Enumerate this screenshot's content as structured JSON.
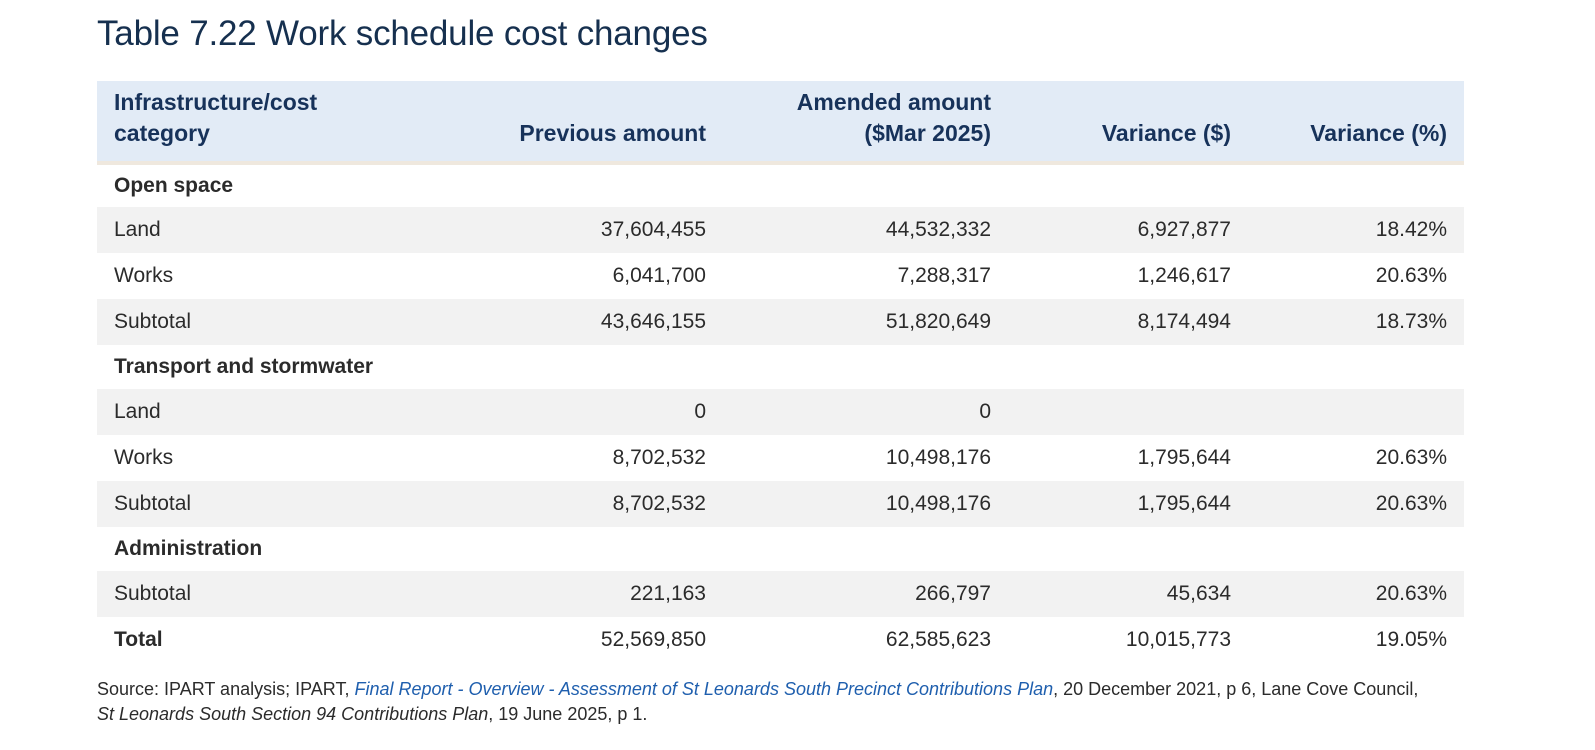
{
  "title": "Table 7.22 Work schedule cost changes",
  "table": {
    "headers": {
      "category_line1": "Infrastructure/cost",
      "category_line2": "category",
      "previous": "Previous amount",
      "amended_line1": "Amended amount",
      "amended_line2": "($Mar 2025)",
      "variance_dollar": "Variance ($)",
      "variance_pct": "Variance (%)"
    },
    "sections": {
      "open_space": {
        "heading": "Open space",
        "rows": [
          {
            "label": "Land",
            "previous": "37,604,455",
            "amended": "44,532,332",
            "variance": "6,927,877",
            "pct": "18.42%"
          },
          {
            "label": "Works",
            "previous": "6,041,700",
            "amended": "7,288,317",
            "variance": "1,246,617",
            "pct": "20.63%"
          },
          {
            "label": "Subtotal",
            "previous": "43,646,155",
            "amended": "51,820,649",
            "variance": "8,174,494",
            "pct": "18.73%"
          }
        ]
      },
      "transport": {
        "heading": "Transport and stormwater",
        "rows": [
          {
            "label": "Land",
            "previous": "0",
            "amended": "0",
            "variance": "",
            "pct": ""
          },
          {
            "label": "Works",
            "previous": "8,702,532",
            "amended": "10,498,176",
            "variance": "1,795,644",
            "pct": "20.63%"
          },
          {
            "label": "Subtotal",
            "previous": "8,702,532",
            "amended": "10,498,176",
            "variance": "1,795,644",
            "pct": "20.63%"
          }
        ]
      },
      "administration": {
        "heading": "Administration",
        "rows": [
          {
            "label": "Subtotal",
            "previous": "221,163",
            "amended": "266,797",
            "variance": "45,634",
            "pct": "20.63%"
          }
        ]
      }
    },
    "total": {
      "label": "Total",
      "previous": "52,569,850",
      "amended": "62,585,623",
      "variance": "10,015,773",
      "pct": "19.05%"
    }
  },
  "source": {
    "prefix": "Source: IPART analysis; IPART, ",
    "report_title": "Final Report - Overview - Assessment of St Leonards South Precinct Contributions Plan",
    "after_report": ", 20 December 2021, p 6,  Lane Cove Council, ",
    "plan_title": "St Leonards South Section 94 Contributions Plan",
    "suffix": ", 19 June 2025, p 1."
  }
}
